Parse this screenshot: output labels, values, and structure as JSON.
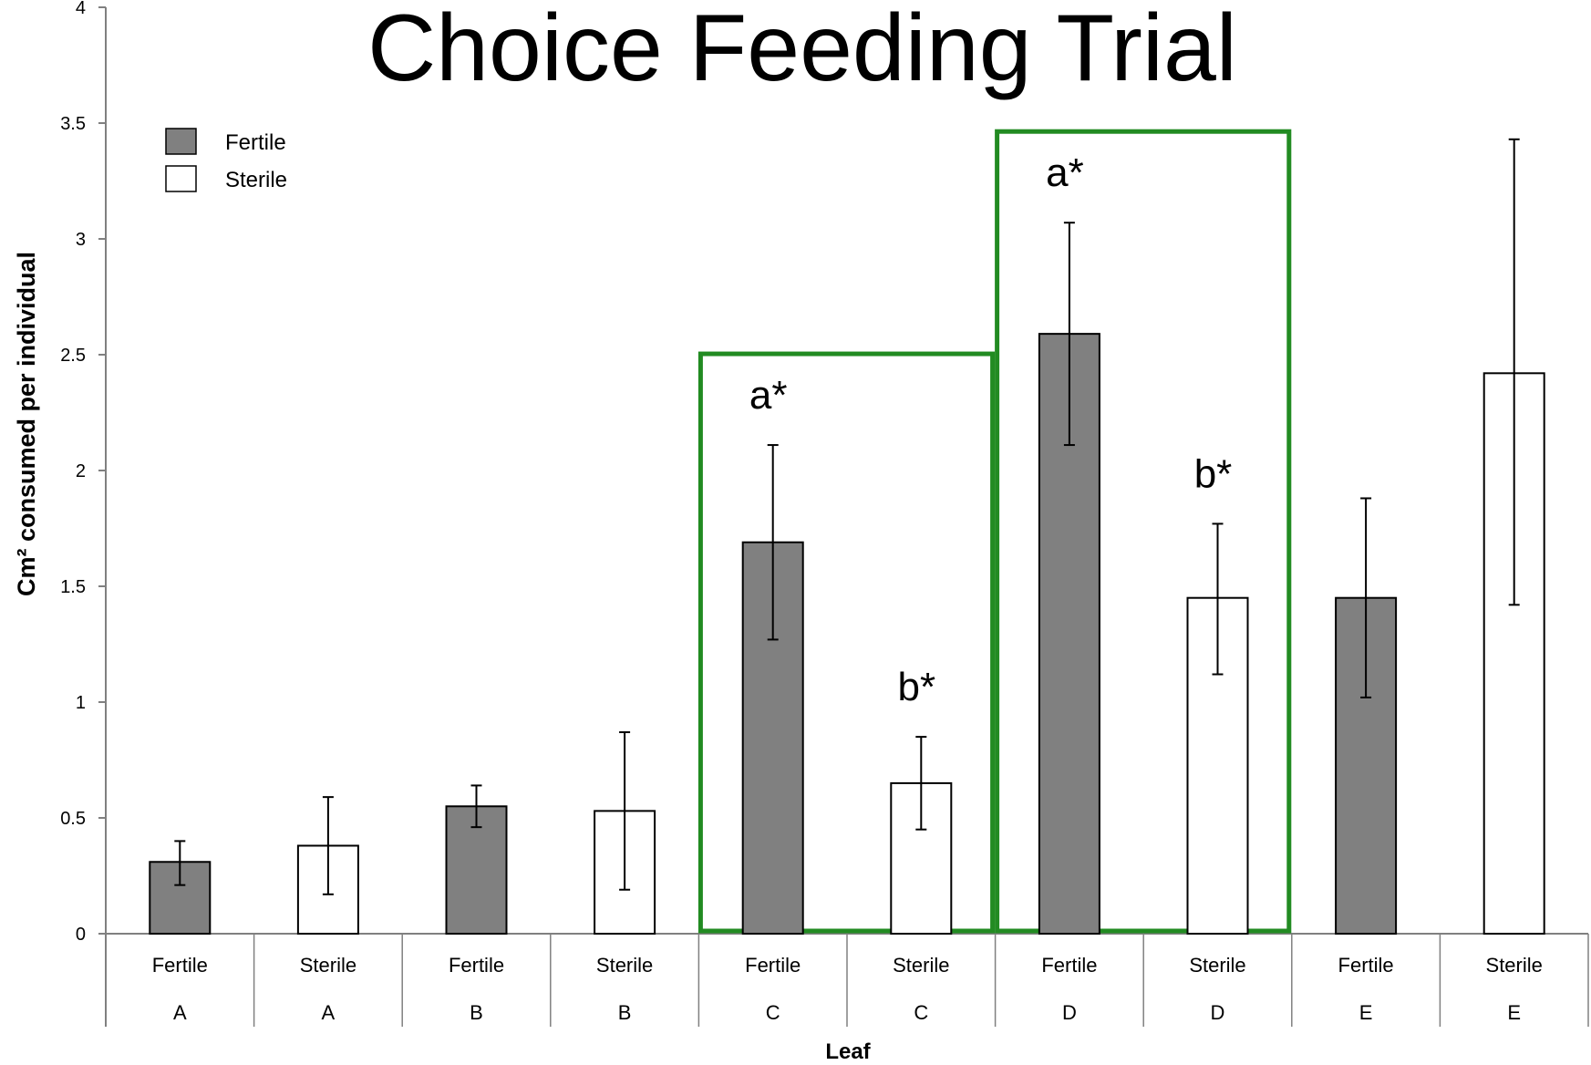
{
  "chart_data": {
    "type": "bar",
    "title": "Choice Feeding Trial",
    "xlabel": "Leaf",
    "ylabel": "Cm² consumed per individual",
    "ylim": [
      0,
      4
    ],
    "yticks": [
      0,
      0.5,
      1,
      1.5,
      2,
      2.5,
      3,
      3.5,
      4
    ],
    "ytick_labels": [
      "0",
      "0.5",
      "1",
      "1.5",
      "2",
      "2.5",
      "3",
      "3.5",
      "4"
    ],
    "grid": false,
    "legend": {
      "placement": "top-left",
      "entries": [
        {
          "name": "Fertile",
          "color": "#808080"
        },
        {
          "name": "Sterile",
          "color": "#ffffff"
        }
      ]
    },
    "bars": [
      {
        "type_label": "Fertile",
        "leaf": "A",
        "value": 0.31,
        "err_low": 0.21,
        "err_high": 0.4
      },
      {
        "type_label": "Sterile",
        "leaf": "A",
        "value": 0.38,
        "err_low": 0.17,
        "err_high": 0.59
      },
      {
        "type_label": "Fertile",
        "leaf": "B",
        "value": 0.55,
        "err_low": 0.46,
        "err_high": 0.64
      },
      {
        "type_label": "Sterile",
        "leaf": "B",
        "value": 0.53,
        "err_low": 0.19,
        "err_high": 0.87
      },
      {
        "type_label": "Fertile",
        "leaf": "C",
        "value": 1.69,
        "err_low": 1.27,
        "err_high": 2.11
      },
      {
        "type_label": "Sterile",
        "leaf": "C",
        "value": 0.65,
        "err_low": 0.45,
        "err_high": 0.85
      },
      {
        "type_label": "Fertile",
        "leaf": "D",
        "value": 2.59,
        "err_low": 2.11,
        "err_high": 3.07
      },
      {
        "type_label": "Sterile",
        "leaf": "D",
        "value": 1.45,
        "err_low": 1.12,
        "err_high": 1.77
      },
      {
        "type_label": "Fertile",
        "leaf": "E",
        "value": 1.45,
        "err_low": 1.02,
        "err_high": 1.88
      },
      {
        "type_label": "Sterile",
        "leaf": "E",
        "value": 2.42,
        "err_low": 1.42,
        "err_high": 3.43
      }
    ],
    "annotations": [
      {
        "text": "a*",
        "bar_index": 4
      },
      {
        "text": "b*",
        "bar_index": 5
      },
      {
        "text": "a*",
        "bar_index": 6
      },
      {
        "text": "b*",
        "bar_index": 7
      }
    ],
    "highlight_boxes": [
      {
        "leaf": "C",
        "color": "#228B22"
      },
      {
        "leaf": "D",
        "color": "#228B22"
      }
    ],
    "colors": {
      "fertile": "#808080",
      "sterile": "#ffffff",
      "highlight": "#228B22",
      "axis": "#808080"
    }
  }
}
